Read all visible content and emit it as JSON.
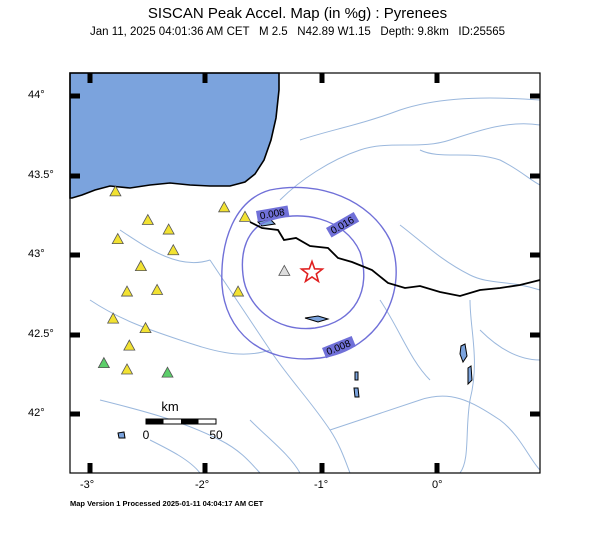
{
  "title": "SISCAN Peak Accel. Map (in %g) : Pyrenees",
  "subtitle": "Jan 11, 2025 04:01:36 AM CET   M 2.5   N42.89 W1.15   Depth: 9.8km   ID:25565",
  "footer": "Map Version 1 Processed 2025-01-11 04:04:17 AM CET",
  "axes": {
    "y_ticks": [
      "44°",
      "43.5°",
      "43°",
      "42.5°",
      "42°"
    ],
    "x_ticks": [
      "-3°",
      "-2°",
      "-1°",
      "0°"
    ]
  },
  "scale_bar": {
    "unit": "km",
    "start": "0",
    "end": "50"
  },
  "contours": [
    {
      "label": "0.008"
    },
    {
      "label": "0.016"
    },
    {
      "label": "0.008"
    }
  ],
  "epicenter": {
    "lat": 42.89,
    "lon": -1.15,
    "symbol": "star-icon"
  },
  "stations": [
    {
      "lon": -2.78,
      "lat": 43.4
    },
    {
      "lon": -2.5,
      "lat": 43.22
    },
    {
      "lon": -2.32,
      "lat": 43.16
    },
    {
      "lon": -1.84,
      "lat": 43.3
    },
    {
      "lon": -1.66,
      "lat": 43.24
    },
    {
      "lon": -2.76,
      "lat": 43.1
    },
    {
      "lon": -2.28,
      "lat": 43.03
    },
    {
      "lon": -2.56,
      "lat": 42.93
    },
    {
      "lon": -2.42,
      "lat": 42.78
    },
    {
      "lon": -2.68,
      "lat": 42.77
    },
    {
      "lon": -2.8,
      "lat": 42.6
    },
    {
      "lon": -2.52,
      "lat": 42.54
    },
    {
      "lon": -2.66,
      "lat": 42.43
    },
    {
      "lon": -2.68,
      "lat": 42.28
    },
    {
      "lon": -1.72,
      "lat": 42.77
    }
  ],
  "green_stations": [
    {
      "lon": -2.88,
      "lat": 42.32
    },
    {
      "lon": -2.33,
      "lat": 42.26
    }
  ],
  "colors": {
    "sea": "#7ba3dd",
    "contour": "#7070d8",
    "river": "#9bb8dd",
    "border": "#000000",
    "station": "#f2e232",
    "green_station": "#5cce6a",
    "star": "#e02020"
  }
}
